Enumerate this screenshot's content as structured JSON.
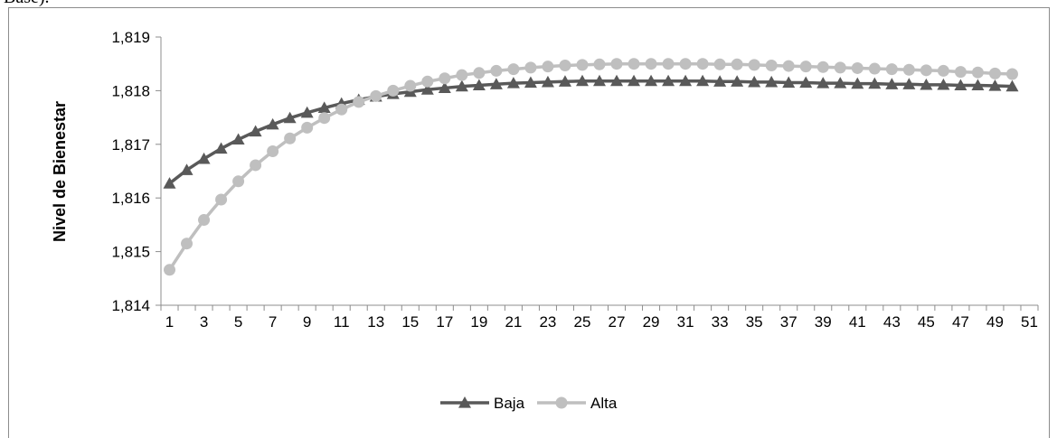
{
  "header_fragment": "Base).",
  "chart_data": {
    "type": "line",
    "title": "",
    "xlabel": "",
    "ylabel": "Nivel de Bienestar",
    "ylim": [
      1.814,
      1.819
    ],
    "y_ticks": [
      "1,814",
      "1,815",
      "1,816",
      "1,817",
      "1,818",
      "1,819"
    ],
    "x_ticks": [
      "1",
      "3",
      "5",
      "7",
      "9",
      "11",
      "13",
      "15",
      "17",
      "19",
      "21",
      "23",
      "25",
      "27",
      "29",
      "31",
      "33",
      "35",
      "37",
      "39",
      "41",
      "43",
      "45",
      "47",
      "49",
      "51"
    ],
    "x_range": [
      1,
      51
    ],
    "grid": false,
    "legend_position": "bottom",
    "x": [
      1,
      2,
      3,
      4,
      5,
      6,
      7,
      8,
      9,
      10,
      11,
      12,
      13,
      14,
      15,
      16,
      17,
      18,
      19,
      20,
      21,
      22,
      23,
      24,
      25,
      26,
      27,
      28,
      29,
      30,
      31,
      32,
      33,
      34,
      35,
      36,
      37,
      38,
      39,
      40,
      41,
      42,
      43,
      44,
      45,
      46,
      47,
      48,
      49,
      50
    ],
    "series": [
      {
        "name": "Baja",
        "color": "#595959",
        "marker": "triangle",
        "values": [
          1.81627,
          1.81652,
          1.81673,
          1.81692,
          1.81709,
          1.81724,
          1.81737,
          1.81749,
          1.81759,
          1.81768,
          1.81776,
          1.81783,
          1.81789,
          1.81794,
          1.81798,
          1.81802,
          1.81805,
          1.81808,
          1.8181,
          1.81812,
          1.81814,
          1.81815,
          1.81816,
          1.81817,
          1.81818,
          1.81818,
          1.81818,
          1.81818,
          1.81818,
          1.81818,
          1.81818,
          1.81818,
          1.81817,
          1.81817,
          1.81816,
          1.81816,
          1.81815,
          1.81815,
          1.81814,
          1.81814,
          1.81813,
          1.81813,
          1.81812,
          1.81812,
          1.81811,
          1.81811,
          1.8181,
          1.8181,
          1.81809,
          1.81808
        ]
      },
      {
        "name": "Alta",
        "color": "#bfbfbf",
        "marker": "circle",
        "values": [
          1.81466,
          1.81515,
          1.81559,
          1.81597,
          1.81631,
          1.81661,
          1.81687,
          1.81711,
          1.81731,
          1.81749,
          1.81765,
          1.81779,
          1.8179,
          1.818,
          1.81809,
          1.81817,
          1.81823,
          1.81829,
          1.81833,
          1.81837,
          1.8184,
          1.81843,
          1.81845,
          1.81847,
          1.81848,
          1.81849,
          1.8185,
          1.8185,
          1.8185,
          1.8185,
          1.8185,
          1.8185,
          1.81849,
          1.81849,
          1.81848,
          1.81847,
          1.81846,
          1.81845,
          1.81844,
          1.81843,
          1.81842,
          1.81841,
          1.8184,
          1.81839,
          1.81838,
          1.81837,
          1.81835,
          1.81834,
          1.81832,
          1.81831
        ]
      }
    ]
  }
}
